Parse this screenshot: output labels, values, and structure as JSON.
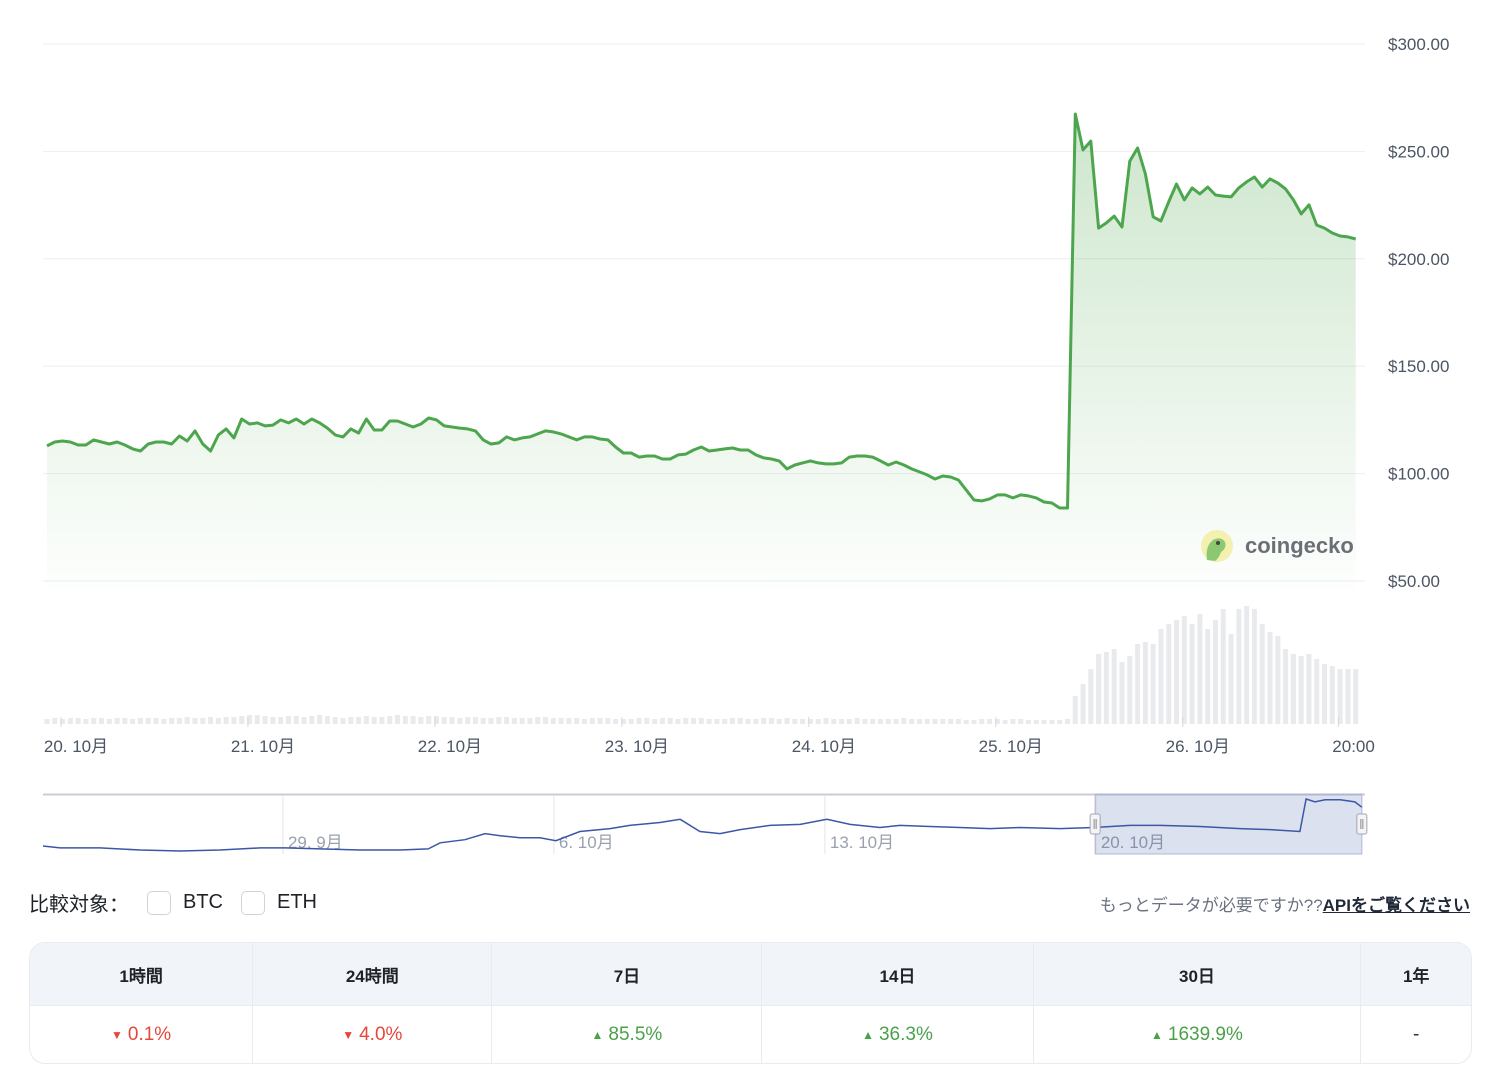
{
  "chart_data": {
    "type": "line",
    "title": "",
    "currency_axis": {
      "ticks": [
        300,
        250,
        200,
        150,
        100,
        50
      ],
      "labels": [
        "$300.00",
        "$250.00",
        "$200.00",
        "$150.00",
        "$100.00",
        "$50.00"
      ],
      "ylim": [
        50,
        300
      ]
    },
    "x_ticks": [
      {
        "hour": 0,
        "label": "20. 10月"
      },
      {
        "hour": 24,
        "label": "21. 10月"
      },
      {
        "hour": 48,
        "label": "22. 10月"
      },
      {
        "hour": 72,
        "label": "23. 10月"
      },
      {
        "hour": 96,
        "label": "24. 10月"
      },
      {
        "hour": 120,
        "label": "25. 10月"
      },
      {
        "hour": 144,
        "label": "26. 10月"
      },
      {
        "hour": 164,
        "label": "20:00"
      }
    ],
    "x_unit": "hours since 20. 10月 00:00",
    "start_hour": -1.8,
    "step_hours": 1,
    "price": [
      112.9,
      114.7,
      115.2,
      114.7,
      113.3,
      113.3,
      115.7,
      114.7,
      113.8,
      114.7,
      113.3,
      111.5,
      110.5,
      113.8,
      114.7,
      114.7,
      113.8,
      117.5,
      115.2,
      119.9,
      113.8,
      110.5,
      118.0,
      120.8,
      116.6,
      125.4,
      123.1,
      123.6,
      122.2,
      122.6,
      125.0,
      123.6,
      125.4,
      123.1,
      125.4,
      123.6,
      121.2,
      118.0,
      117.1,
      120.8,
      118.9,
      125.4,
      120.3,
      120.3,
      124.5,
      124.5,
      123.1,
      121.7,
      123.1,
      125.9,
      125.0,
      122.2,
      121.7,
      121.2,
      120.8,
      119.9,
      115.7,
      113.8,
      114.3,
      117.1,
      115.7,
      116.6,
      117.1,
      118.5,
      119.9,
      119.4,
      118.5,
      117.1,
      115.7,
      117.1,
      117.1,
      116.1,
      115.7,
      112.4,
      109.6,
      109.6,
      107.7,
      108.2,
      108.2,
      106.8,
      106.8,
      108.7,
      109.1,
      111.0,
      112.4,
      110.5,
      111.0,
      111.5,
      111.9,
      111.0,
      111.0,
      108.7,
      107.3,
      106.8,
      105.9,
      102.2,
      104.0,
      105.0,
      105.9,
      105.0,
      104.5,
      104.5,
      105.0,
      107.7,
      108.2,
      108.2,
      107.7,
      105.9,
      104.0,
      105.4,
      104.0,
      102.2,
      100.8,
      99.4,
      97.5,
      98.9,
      98.4,
      97.0,
      92.4,
      87.7,
      87.3,
      88.2,
      90.1,
      90.1,
      88.7,
      90.1,
      89.6,
      88.7,
      86.8,
      86.3,
      84.0,
      84.0,
      267.4,
      250.7,
      254.8,
      214.3,
      216.7,
      219.9,
      214.8,
      245.5,
      251.6,
      239.5,
      219.5,
      217.6,
      226.5,
      234.8,
      227.4,
      233.0,
      230.2,
      233.4,
      229.7,
      229.2,
      228.8,
      233.0,
      235.8,
      238.1,
      233.4,
      237.2,
      235.3,
      232.5,
      227.4,
      220.9,
      225.1,
      215.7,
      214.3,
      212.0,
      210.6,
      210.2,
      209.2
    ],
    "volume_relative": [
      5,
      6,
      5,
      6,
      6,
      5,
      6,
      6,
      5,
      6,
      6,
      5,
      6,
      6,
      6,
      5,
      6,
      6,
      7,
      6,
      6,
      7,
      6,
      7,
      7,
      8,
      9,
      9,
      8,
      7,
      7,
      8,
      8,
      7,
      8,
      9,
      8,
      7,
      6,
      7,
      7,
      8,
      7,
      7,
      8,
      9,
      8,
      8,
      7,
      8,
      8,
      7,
      7,
      6,
      7,
      7,
      6,
      6,
      7,
      7,
      6,
      6,
      6,
      7,
      7,
      6,
      6,
      6,
      6,
      5,
      6,
      6,
      6,
      5,
      5,
      5,
      6,
      6,
      5,
      6,
      6,
      5,
      6,
      6,
      6,
      5,
      5,
      5,
      6,
      6,
      5,
      5,
      6,
      6,
      5,
      6,
      5,
      5,
      5,
      5,
      6,
      5,
      5,
      5,
      6,
      5,
      5,
      5,
      5,
      5,
      6,
      5,
      5,
      5,
      5,
      5,
      5,
      5,
      4,
      4,
      5,
      5,
      5,
      4,
      5,
      5,
      4,
      4,
      4,
      4,
      4,
      5,
      28,
      40,
      55,
      70,
      72,
      75,
      62,
      68,
      80,
      82,
      80,
      95,
      100,
      104,
      108,
      100,
      110,
      95,
      104,
      115,
      90,
      115,
      118,
      115,
      100,
      92,
      88,
      75,
      70,
      68,
      70,
      65,
      60,
      58,
      55,
      55,
      55
    ],
    "navigator": {
      "ticks": [
        {
          "day": 6.25,
          "label": "29. 9月"
        },
        {
          "day": 13.25,
          "label": "6. 10月"
        },
        {
          "day": 20.25,
          "label": "13. 10月"
        },
        {
          "day": 27.25,
          "label": "20. 10月"
        }
      ],
      "selection_days": [
        27.18,
        34.07
      ],
      "points": [
        [
          0,
          36
        ],
        [
          0.44,
          27
        ],
        [
          1.47,
          27
        ],
        [
          2.51,
          17
        ],
        [
          3.54,
          12
        ],
        [
          4.57,
          17
        ],
        [
          5.61,
          27
        ],
        [
          6.25,
          27
        ],
        [
          7.16,
          22
        ],
        [
          8.19,
          17
        ],
        [
          9.22,
          17
        ],
        [
          9.95,
          22
        ],
        [
          10.26,
          51
        ],
        [
          10.9,
          66
        ],
        [
          11.42,
          95
        ],
        [
          11.81,
          85
        ],
        [
          12.32,
          75
        ],
        [
          12.84,
          75
        ],
        [
          13.25,
          61
        ],
        [
          13.87,
          105
        ],
        [
          14.65,
          119
        ],
        [
          15.16,
          134
        ],
        [
          15.94,
          148
        ],
        [
          16.46,
          163
        ],
        [
          16.97,
          105
        ],
        [
          17.49,
          95
        ],
        [
          18.01,
          114
        ],
        [
          18.78,
          134
        ],
        [
          19.56,
          139
        ],
        [
          20.25,
          163
        ],
        [
          20.85,
          139
        ],
        [
          21.62,
          124
        ],
        [
          22.14,
          134
        ],
        [
          22.91,
          129
        ],
        [
          23.69,
          124
        ],
        [
          24.46,
          119
        ],
        [
          25.24,
          124
        ],
        [
          26.27,
          119
        ],
        [
          27.15,
          124
        ],
        [
          28.08,
          134
        ],
        [
          28.86,
          134
        ],
        [
          29.89,
          129
        ],
        [
          30.92,
          119
        ],
        [
          31.7,
          114
        ],
        [
          32.47,
          105
        ],
        [
          32.63,
          260
        ],
        [
          32.86,
          246
        ],
        [
          33.12,
          256
        ],
        [
          33.51,
          256
        ],
        [
          33.89,
          246
        ],
        [
          34.07,
          221
        ]
      ]
    },
    "watermark": "coingecko",
    "colors": {
      "line": "#4da64d",
      "nav_line": "#3b57a6",
      "up": "#4aa14a",
      "down": "#e5483b"
    }
  },
  "compare": {
    "label": "比較対象：",
    "options": [
      "BTC",
      "ETH"
    ]
  },
  "api_prompt": {
    "text": "もっとデータが必要ですか??",
    "link": "APIをご覧ください"
  },
  "changes": [
    {
      "period": "1時間",
      "value": "0.1%",
      "dir": "down"
    },
    {
      "period": "24時間",
      "value": "4.0%",
      "dir": "down"
    },
    {
      "period": "7日",
      "value": "85.5%",
      "dir": "up"
    },
    {
      "period": "14日",
      "value": "36.3%",
      "dir": "up"
    },
    {
      "period": "30日",
      "value": "1639.9%",
      "dir": "up"
    },
    {
      "period": "1年",
      "value": "-",
      "dir": "none"
    }
  ]
}
